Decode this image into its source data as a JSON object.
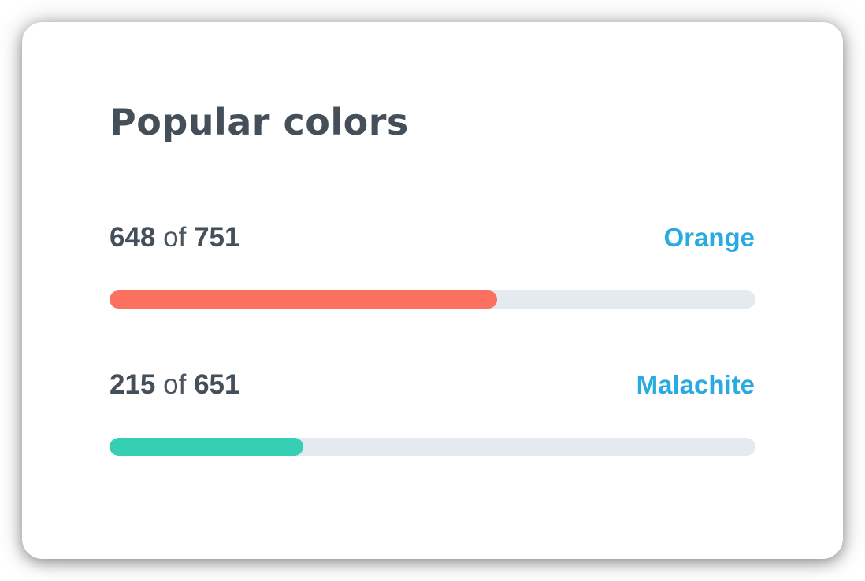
{
  "card": {
    "title": "Popular colors"
  },
  "colors": {
    "heading_text": "#454F59",
    "label_blue": "#29ABE2",
    "track_gray": "#E5E9F0"
  },
  "rows": [
    {
      "count": "648",
      "of_word": "of",
      "total": "751",
      "label": "Orange",
      "fill_color": "#FC7060",
      "fill_percent": 60
    },
    {
      "count": "215",
      "of_word": "of",
      "total": "651",
      "label": "Malachite",
      "fill_color": "#35CFB4",
      "fill_percent": 30
    }
  ]
}
